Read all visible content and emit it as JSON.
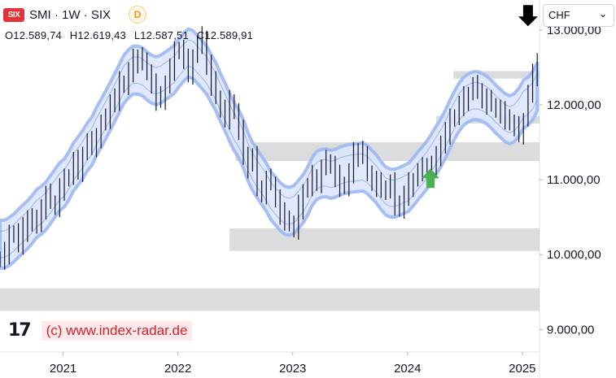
{
  "header": {
    "symbol_icon": "six-exchange-icon",
    "symbol_icon_text": "SIX",
    "title": "SMI · 1W · SIX",
    "badge": "D",
    "ohlc": {
      "open_label": "O12.589,74",
      "high_label": "H12.619,43",
      "low_label": "L12.587,51",
      "close_label": "C12.589,91"
    }
  },
  "currency_selector": {
    "value": "CHF",
    "icon": "chevron-down-icon"
  },
  "watermark": {
    "logo": "tradingview-logo",
    "logo_text": "17",
    "text": "(c) www.index-radar.de"
  },
  "colors": {
    "band_fill": "#dce6fd",
    "band_edge": "#9db8f5",
    "band_line": "#6f8fe0",
    "zone": "#c8c9cc",
    "candle": "#131722",
    "up_arrow": "#4caf50",
    "down_arrow": "#000000"
  },
  "chart_data": {
    "type": "line",
    "description_series": "weekly bars with envelope band",
    "ylim": [
      8700,
      13400
    ],
    "x_range": [
      "2020-06",
      "2025-04"
    ],
    "yticks": [
      {
        "value": 13000,
        "label": "13.000,00"
      },
      {
        "value": 12000,
        "label": "12.000,00"
      },
      {
        "value": 11000,
        "label": "11.000,00"
      },
      {
        "value": 10000,
        "label": "10.000,00"
      },
      {
        "value": 9000,
        "label": "9.000,00"
      }
    ],
    "xticks": [
      {
        "value": 2021.0,
        "label": "2021"
      },
      {
        "value": 2022.0,
        "label": "2022"
      },
      {
        "value": 2023.0,
        "label": "2023"
      },
      {
        "value": 2024.0,
        "label": "2024"
      },
      {
        "value": 2025.0,
        "label": "2025"
      }
    ],
    "x_start": 2020.45,
    "x_end": 2025.15,
    "series": [
      {
        "values": [
          9950,
          10050,
          10250,
          10300,
          10150,
          10350,
          10500,
          10400,
          10450,
          10650,
          10800,
          10700,
          10650,
          10900,
          11000,
          11050,
          11250,
          11150,
          11350,
          11500,
          11450,
          11600,
          11750,
          11800,
          12050,
          12100,
          12300,
          12250,
          12450,
          12600,
          12650,
          12550,
          12450,
          12300,
          12100,
          12050,
          12300,
          12500,
          12700,
          12750,
          12600,
          12450,
          12650,
          12800,
          12900,
          12550,
          12300,
          12100,
          11950,
          11850,
          12050,
          11900,
          11650,
          11350,
          11200,
          11300,
          10900,
          10850,
          11000,
          10950,
          10750,
          10550,
          10500,
          10400,
          10350,
          10650,
          10850,
          10900,
          11050,
          11000,
          11150,
          11250,
          11200,
          11050,
          10950,
          10900,
          11100,
          11350,
          11400,
          11300,
          11100,
          11000,
          10950,
          10850,
          10900,
          10950,
          10700,
          10600,
          10800,
          10950,
          11000,
          11100,
          11150,
          11200,
          11150,
          11300,
          11500,
          11650,
          11800,
          11850,
          12000,
          12100,
          12150,
          12250,
          12200,
          12100,
          12050,
          12000,
          11950,
          11900,
          11850,
          11750,
          11700,
          11650,
          11800,
          12150,
          12400,
          12600
        ]
      }
    ],
    "band_width": 320,
    "zones": [
      {
        "from": 11250,
        "to": 11500,
        "start": 2022.5
      },
      {
        "from": 10050,
        "to": 10350,
        "start": 2022.45
      },
      {
        "from": 9250,
        "to": 9550,
        "start": 2020.45
      },
      {
        "from": 11750,
        "to": 11850,
        "start": 2024.25
      },
      {
        "from": 12350,
        "to": 12450,
        "start": 2024.4
      }
    ],
    "annotations": [
      {
        "type": "up-arrow",
        "x": 2024.2,
        "y": 11150
      },
      {
        "type": "down-arrow",
        "x": 2025.05,
        "y": 13050
      }
    ]
  }
}
